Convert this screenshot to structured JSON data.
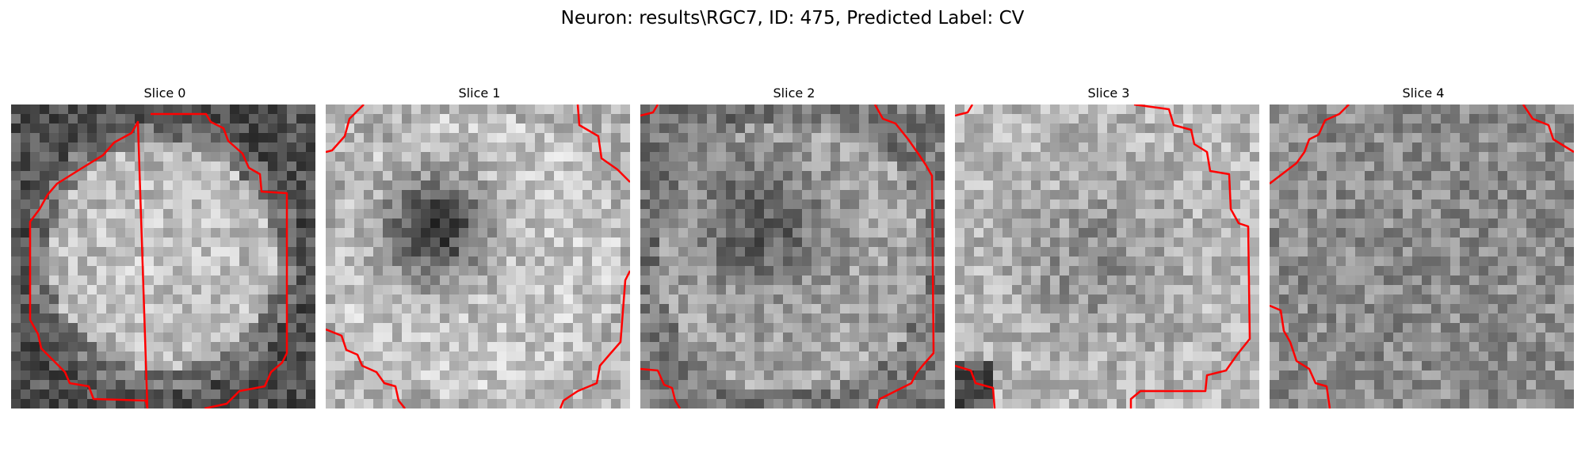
{
  "figure": {
    "title": "Neuron: results\\RGC7, ID: 475, Predicted Label: CV"
  },
  "panels": [
    {
      "title": "Slice 0",
      "seed": 11,
      "pattern": "ring"
    },
    {
      "title": "Slice 1",
      "seed": 23,
      "pattern": "dark_center"
    },
    {
      "title": "Slice 2",
      "seed": 37,
      "pattern": "dark_center_soft"
    },
    {
      "title": "Slice 3",
      "seed": 41,
      "pattern": "ring_offset"
    },
    {
      "title": "Slice 4",
      "seed": 57,
      "pattern": "noise"
    }
  ],
  "contour_color": "#ff0000"
}
